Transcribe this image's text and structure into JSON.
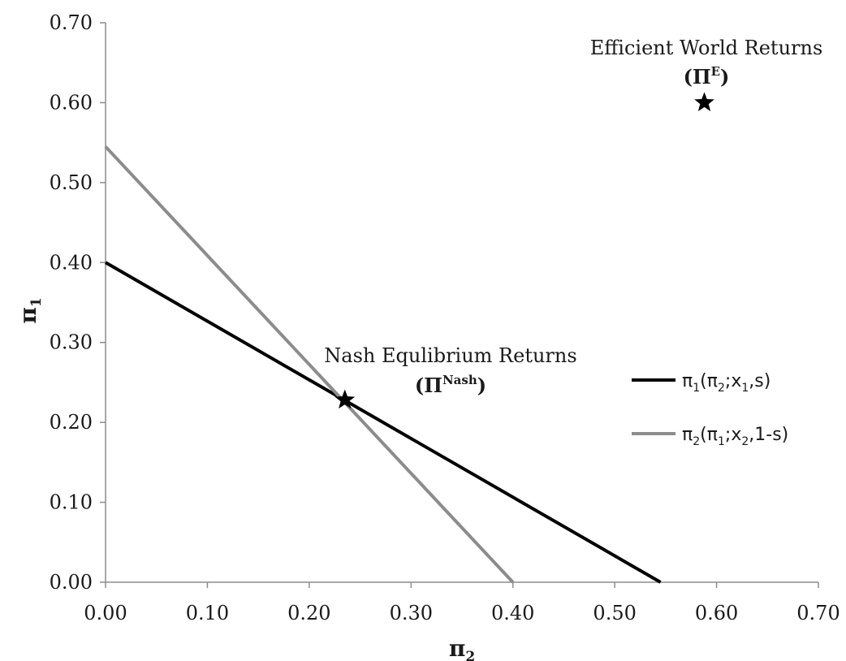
{
  "chart_data": {
    "type": "line",
    "x_axis": {
      "label_base": "π",
      "label_sub": "2",
      "range": [
        0,
        0.7
      ],
      "ticks": [
        0,
        0.1,
        0.2,
        0.3,
        0.4,
        0.5,
        0.6,
        0.7
      ],
      "tick_labels": [
        "0.00",
        "0.10",
        "0.20",
        "0.30",
        "0.40",
        "0.50",
        "0.60",
        "0.70"
      ]
    },
    "y_axis": {
      "label_base": "π",
      "label_sub": "1",
      "range": [
        0,
        0.7
      ],
      "ticks": [
        0,
        0.1,
        0.2,
        0.3,
        0.4,
        0.5,
        0.6,
        0.7
      ],
      "tick_labels": [
        "0.00",
        "0.10",
        "0.20",
        "0.30",
        "0.40",
        "0.50",
        "0.60",
        "0.70"
      ]
    },
    "grid": false,
    "legend_position": "right",
    "series": [
      {
        "legend_parts": [
          {
            "t": "π",
            "sub": false
          },
          {
            "t": "1",
            "sub": true
          },
          {
            "t": "(π",
            "sub": false
          },
          {
            "t": "2",
            "sub": true
          },
          {
            "t": ";x",
            "sub": false
          },
          {
            "t": "1",
            "sub": true
          },
          {
            "t": ",s)",
            "sub": false
          }
        ],
        "color": "#000000",
        "x": [
          0.0,
          0.545
        ],
        "y": [
          0.4,
          0.0
        ]
      },
      {
        "legend_parts": [
          {
            "t": "π",
            "sub": false
          },
          {
            "t": "2",
            "sub": true
          },
          {
            "t": "(π",
            "sub": false
          },
          {
            "t": "1",
            "sub": true
          },
          {
            "t": ";x",
            "sub": false
          },
          {
            "t": "2",
            "sub": true
          },
          {
            "t": ",1-s)",
            "sub": false
          }
        ],
        "color": "#8c8c8c",
        "x": [
          0.0,
          0.4
        ],
        "y": [
          0.545,
          0.0
        ]
      }
    ],
    "points": [
      {
        "x": 0.235,
        "y": 0.228,
        "marker": "star",
        "label": "Nash Equlibrium Returns",
        "symbol_base": "Π",
        "symbol_sup": "Nash"
      },
      {
        "x": 0.588,
        "y": 0.6,
        "marker": "star",
        "label": "Efficient World Returns",
        "symbol_base": "Π",
        "symbol_sup": "E"
      }
    ]
  }
}
